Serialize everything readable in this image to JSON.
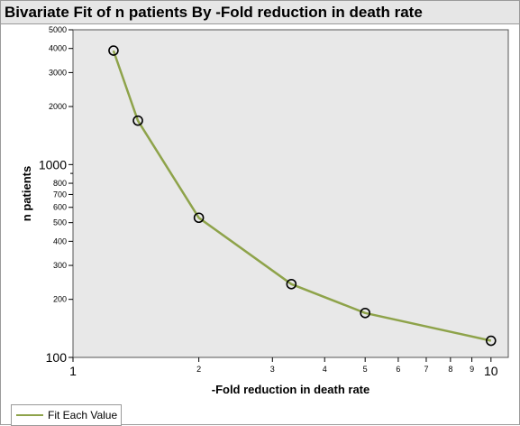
{
  "title": "Bivariate Fit of n patients By -Fold reduction in death rate",
  "legend": {
    "label": "Fit Each Value",
    "color": "#8ea34a"
  },
  "colors": {
    "plot_bg": "#e8e8e8",
    "line": "#8ea34a",
    "marker_stroke": "#000000"
  },
  "chart_data": {
    "type": "line",
    "title": "Bivariate Fit of n patients By -Fold reduction in death rate",
    "xlabel": "-Fold reduction in death rate",
    "ylabel": "n patients",
    "x_scale": "log",
    "y_scale": "log",
    "xlim": [
      1,
      11
    ],
    "ylim": [
      100,
      5000
    ],
    "x_ticks": [
      1,
      2,
      3,
      4,
      5,
      6,
      7,
      8,
      9,
      10
    ],
    "x_tick_labels": [
      "1",
      "2",
      "3",
      "4",
      "5",
      "6",
      "7",
      "8",
      "9",
      "10"
    ],
    "y_ticks": [
      100,
      200,
      300,
      400,
      500,
      600,
      700,
      800,
      1000,
      2000,
      3000,
      4000,
      5000
    ],
    "y_tick_labels": [
      "100",
      "200",
      "300",
      "400",
      "500",
      "600",
      "700",
      "800",
      "1000",
      "2000",
      "3000",
      "4000",
      "5000"
    ],
    "series": [
      {
        "name": "Fit Each Value",
        "x": [
          1.25,
          1.43,
          2.0,
          3.33,
          5.0,
          10.0
        ],
        "y": [
          3900,
          1690,
          530,
          240,
          170,
          122
        ]
      }
    ],
    "grid": false,
    "legend_position": "bottom-left"
  }
}
